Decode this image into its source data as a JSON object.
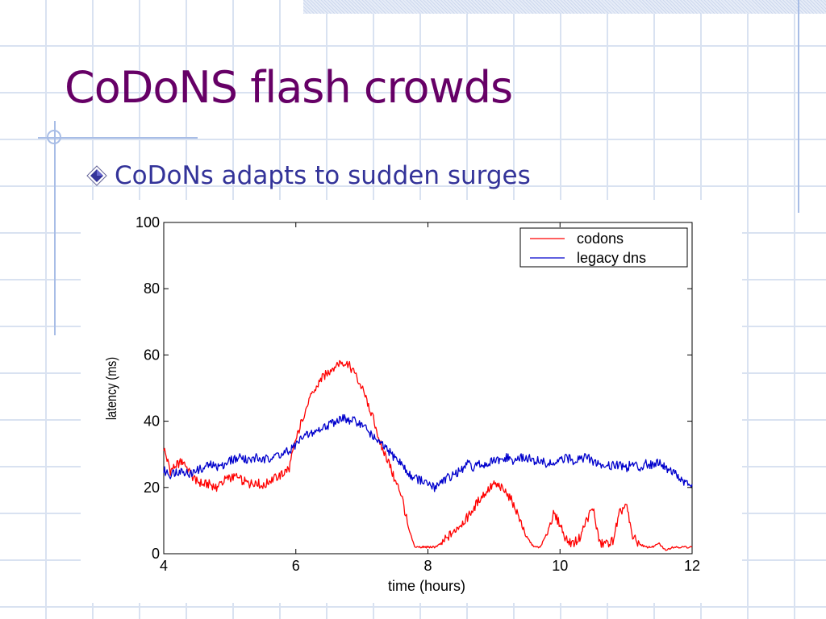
{
  "slide": {
    "title": "CoDoNS flash crowds",
    "bullet": "CoDoNs adapts to sudden surges"
  },
  "colors": {
    "title": "#660066",
    "bullet_text": "#333399",
    "codons_line": "#ff0000",
    "legacy_line": "#0000cc",
    "decor": "#a8bde6"
  },
  "chart_data": {
    "type": "line",
    "xlabel": "time (hours)",
    "ylabel": "latency (ms)",
    "xlim": [
      4,
      12
    ],
    "ylim": [
      0,
      100
    ],
    "xticks": [
      "4",
      "6",
      "8",
      "10",
      "12"
    ],
    "yticks": [
      "0",
      "20",
      "40",
      "60",
      "80",
      "100"
    ],
    "grid": false,
    "legend_position": "top-right",
    "series": [
      {
        "name": "codons",
        "color": "#ff0000",
        "x": [
          4.0,
          4.1,
          4.2,
          4.3,
          4.4,
          4.5,
          4.6,
          4.7,
          4.8,
          4.9,
          5.0,
          5.1,
          5.2,
          5.3,
          5.4,
          5.5,
          5.6,
          5.7,
          5.8,
          5.9,
          6.0,
          6.1,
          6.2,
          6.3,
          6.4,
          6.5,
          6.6,
          6.7,
          6.8,
          6.9,
          7.0,
          7.1,
          7.2,
          7.3,
          7.4,
          7.5,
          7.6,
          7.7,
          7.8,
          7.9,
          7.95,
          8.0,
          8.1,
          8.2,
          8.3,
          8.4,
          8.5,
          8.6,
          8.7,
          8.8,
          8.9,
          9.0,
          9.1,
          9.2,
          9.3,
          9.4,
          9.5,
          9.6,
          9.7,
          9.8,
          9.9,
          10.0,
          10.1,
          10.2,
          10.3,
          10.4,
          10.5,
          10.6,
          10.7,
          10.8,
          10.9,
          11.0,
          11.1,
          11.2,
          11.3,
          11.4,
          11.5,
          11.6,
          11.7,
          11.8,
          11.9,
          12.0
        ],
        "y": [
          32,
          25,
          27,
          28,
          24,
          22,
          21,
          21,
          20,
          22,
          23,
          23,
          22,
          21,
          22,
          20,
          22,
          23,
          24,
          26,
          34,
          41,
          46,
          50,
          53,
          55,
          57,
          58,
          57,
          54,
          50,
          45,
          39,
          32,
          28,
          22,
          18,
          8,
          2,
          2,
          2,
          2,
          2,
          3,
          5,
          7,
          9,
          11,
          14,
          17,
          19,
          21,
          20,
          18,
          15,
          10,
          5,
          2,
          2,
          6,
          12,
          9,
          4,
          3,
          5,
          10,
          14,
          3,
          3,
          4,
          12,
          15,
          5,
          3,
          2,
          2,
          3,
          1,
          2,
          2,
          2,
          2
        ]
      },
      {
        "name": "legacy dns",
        "color": "#0000cc",
        "x": [
          4.0,
          4.1,
          4.2,
          4.3,
          4.4,
          4.5,
          4.6,
          4.7,
          4.8,
          4.9,
          5.0,
          5.1,
          5.2,
          5.3,
          5.4,
          5.5,
          5.6,
          5.7,
          5.8,
          5.9,
          6.0,
          6.1,
          6.2,
          6.3,
          6.4,
          6.5,
          6.6,
          6.7,
          6.8,
          6.9,
          7.0,
          7.1,
          7.2,
          7.3,
          7.4,
          7.5,
          7.6,
          7.7,
          7.8,
          7.9,
          8.0,
          8.1,
          8.2,
          8.3,
          8.4,
          8.5,
          8.6,
          8.7,
          8.8,
          8.9,
          9.0,
          9.1,
          9.2,
          9.3,
          9.4,
          9.5,
          9.6,
          9.7,
          9.8,
          9.9,
          10.0,
          10.1,
          10.2,
          10.3,
          10.4,
          10.5,
          10.6,
          10.7,
          10.8,
          10.9,
          11.0,
          11.1,
          11.2,
          11.3,
          11.4,
          11.5,
          11.6,
          11.7,
          11.8,
          11.9,
          12.0
        ],
        "y": [
          25,
          24,
          25,
          25,
          24,
          25,
          26,
          27,
          26,
          27,
          28,
          29,
          29,
          28,
          29,
          28,
          29,
          30,
          30,
          31,
          33,
          35,
          36,
          37,
          38,
          39,
          40,
          41,
          40,
          40,
          39,
          37,
          35,
          33,
          31,
          29,
          27,
          24,
          23,
          22,
          21,
          20,
          22,
          23,
          24,
          25,
          27,
          26,
          27,
          27,
          28,
          28,
          29,
          28,
          29,
          29,
          28,
          28,
          27,
          27,
          28,
          29,
          28,
          29,
          29,
          28,
          27,
          26,
          27,
          27,
          26,
          27,
          26,
          27,
          27,
          28,
          26,
          25,
          23,
          21,
          21
        ]
      }
    ]
  }
}
